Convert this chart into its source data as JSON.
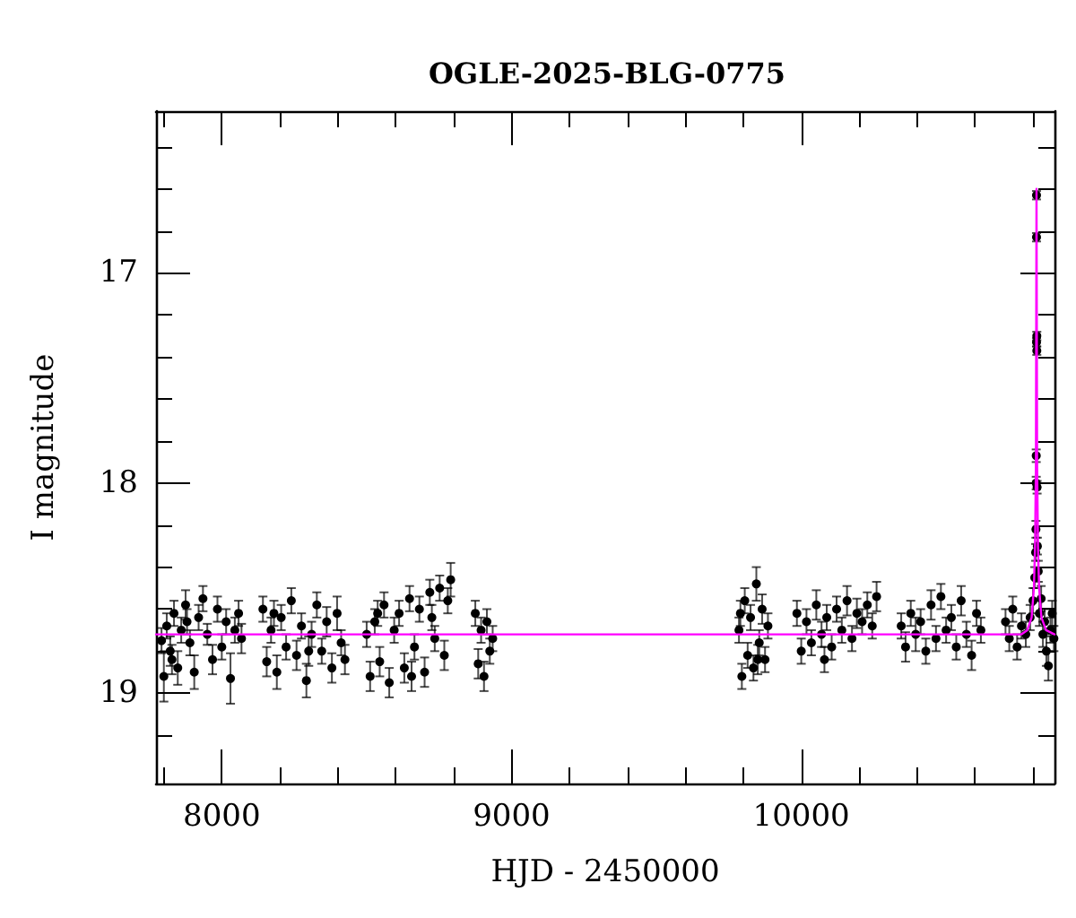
{
  "chart_data": {
    "type": "scatter",
    "title": "OGLE-2025-BLG-0775",
    "xlabel": "HJD - 2450000",
    "ylabel": "I magnitude",
    "xlim": [
      7773,
      10874
    ],
    "ylim": [
      19.43,
      16.23
    ],
    "xticks": [
      {
        "value": 7800,
        "label": null
      },
      8000,
      {
        "value": 8200,
        "label": null
      },
      {
        "value": 8400,
        "label": null
      },
      {
        "value": 8600,
        "label": null
      },
      {
        "value": 8800,
        "label": null
      },
      9000,
      {
        "value": 9200,
        "label": null
      },
      {
        "value": 9400,
        "label": null
      },
      {
        "value": 9600,
        "label": null
      },
      {
        "value": 9800,
        "label": null
      },
      10000,
      {
        "value": 10200,
        "label": null
      },
      {
        "value": 10400,
        "label": null
      },
      {
        "value": 10600,
        "label": null
      },
      {
        "value": 10800,
        "label": null
      }
    ],
    "yticks": [
      {
        "value": 16.4,
        "label": null
      },
      {
        "value": 16.6,
        "label": null
      },
      {
        "value": 16.8,
        "label": null
      },
      17,
      {
        "value": 17.2,
        "label": null
      },
      {
        "value": 17.4,
        "label": null
      },
      {
        "value": 17.6,
        "label": null
      },
      {
        "value": 17.8,
        "label": null
      },
      18,
      {
        "value": 18.2,
        "label": null
      },
      {
        "value": 18.4,
        "label": null
      },
      {
        "value": 18.6,
        "label": null
      },
      {
        "value": 18.8,
        "label": null
      },
      19,
      {
        "value": 19.2,
        "label": null
      }
    ],
    "marker": "circle",
    "series": [
      {
        "color": "#000000",
        "x": [
          7792,
          7800,
          7810,
          7822,
          7835,
          7848,
          7860,
          7875,
          7890,
          7905,
          7920,
          7935,
          7950,
          7968,
          7985,
          8000,
          8015,
          8030,
          8045,
          8058,
          8068,
          8142,
          8155,
          8170,
          8190,
          8205,
          8222,
          8240,
          8258,
          8275,
          8292,
          8310,
          8328,
          8345,
          8362,
          8380,
          8398,
          8412,
          8425,
          8500,
          8512,
          8528,
          8545,
          8560,
          8578,
          8595,
          8612,
          8630,
          8648,
          8665,
          8682,
          8700,
          8718,
          8735,
          8752,
          8768,
          8780,
          8790,
          8875,
          8885,
          8895,
          8905,
          8915,
          8925,
          8935,
          9785,
          9795,
          9805,
          9815,
          9825,
          9835,
          9845,
          9855,
          9865,
          9875,
          9885,
          9985,
          10000,
          10018,
          10035,
          10052,
          10070,
          10088,
          10105,
          10122,
          10140,
          10158,
          10175,
          10192,
          10210,
          10228,
          10245,
          10260,
          10345,
          10360,
          10378,
          10395,
          10412,
          10430,
          10448,
          10465,
          10482,
          10500,
          10518,
          10535,
          10552,
          10570,
          10588,
          10605,
          10620,
          10705,
          10718,
          10730,
          10745,
          10760,
          10775,
          10790,
          10800,
          10806,
          10809,
          10810,
          10811,
          10811,
          10812,
          10812,
          10812,
          10813,
          10813,
          10814,
          10815,
          10818,
          10822,
          10828,
          10834,
          10840,
          10846,
          10853,
          10860,
          10866,
          10872,
          7828,
          7880,
          8180,
          8300,
          8538,
          8655,
          8725,
          9790,
          9850,
          10080
        ],
        "values": [
          18.75,
          18.92,
          18.68,
          18.8,
          18.62,
          18.88,
          18.7,
          18.58,
          18.76,
          18.9,
          18.64,
          18.55,
          18.72,
          18.84,
          18.6,
          18.78,
          18.66,
          18.93,
          18.7,
          18.62,
          18.74,
          18.6,
          18.85,
          18.7,
          18.9,
          18.64,
          18.78,
          18.56,
          18.82,
          18.68,
          18.94,
          18.72,
          18.58,
          18.8,
          18.66,
          18.88,
          18.62,
          18.76,
          18.84,
          18.72,
          18.92,
          18.66,
          18.85,
          18.58,
          18.95,
          18.7,
          18.62,
          18.88,
          18.55,
          18.78,
          18.6,
          18.9,
          18.52,
          18.74,
          18.5,
          18.82,
          18.56,
          18.46,
          18.62,
          18.86,
          18.7,
          18.92,
          18.66,
          18.8,
          18.74,
          18.7,
          18.92,
          18.56,
          18.82,
          18.64,
          18.88,
          18.48,
          18.76,
          18.6,
          18.84,
          18.68,
          18.62,
          18.8,
          18.66,
          18.76,
          18.58,
          18.72,
          18.64,
          18.78,
          18.6,
          18.7,
          18.56,
          18.74,
          18.62,
          18.66,
          18.58,
          18.68,
          18.54,
          18.68,
          18.78,
          18.62,
          18.72,
          18.66,
          18.8,
          18.58,
          18.74,
          18.54,
          18.7,
          18.64,
          18.78,
          18.56,
          18.72,
          18.82,
          18.62,
          18.7,
          18.66,
          18.74,
          18.6,
          18.78,
          18.68,
          18.72,
          18.64,
          18.56,
          18.45,
          18.33,
          18.22,
          17.87,
          18.0,
          17.33,
          16.83,
          16.63,
          17.3,
          17.37,
          18.02,
          18.3,
          18.42,
          18.62,
          18.55,
          18.72,
          18.66,
          18.8,
          18.87,
          18.7,
          18.62,
          18.74,
          18.84,
          18.66,
          18.62,
          18.8,
          18.62,
          18.92,
          18.64,
          18.62,
          18.84,
          18.84
        ],
        "errors": [
          0.06,
          0.12,
          0.06,
          0.07,
          0.06,
          0.08,
          0.06,
          0.07,
          0.06,
          0.08,
          0.06,
          0.06,
          0.05,
          0.07,
          0.06,
          0.06,
          0.06,
          0.12,
          0.06,
          0.06,
          0.07,
          0.06,
          0.07,
          0.06,
          0.08,
          0.06,
          0.06,
          0.06,
          0.07,
          0.06,
          0.08,
          0.06,
          0.06,
          0.06,
          0.07,
          0.07,
          0.08,
          0.06,
          0.07,
          0.06,
          0.07,
          0.06,
          0.07,
          0.06,
          0.07,
          0.06,
          0.06,
          0.07,
          0.06,
          0.06,
          0.06,
          0.07,
          0.06,
          0.06,
          0.06,
          0.07,
          0.06,
          0.08,
          0.06,
          0.07,
          0.06,
          0.07,
          0.06,
          0.06,
          0.06,
          0.06,
          0.06,
          0.06,
          0.06,
          0.06,
          0.06,
          0.08,
          0.06,
          0.07,
          0.06,
          0.06,
          0.06,
          0.06,
          0.06,
          0.06,
          0.07,
          0.06,
          0.06,
          0.06,
          0.06,
          0.06,
          0.07,
          0.06,
          0.07,
          0.06,
          0.06,
          0.06,
          0.07,
          0.06,
          0.07,
          0.06,
          0.08,
          0.06,
          0.06,
          0.07,
          0.06,
          0.06,
          0.06,
          0.06,
          0.06,
          0.07,
          0.06,
          0.07,
          0.06,
          0.06,
          0.06,
          0.06,
          0.06,
          0.06,
          0.06,
          0.06,
          0.06,
          0.06,
          0.05,
          0.04,
          0.04,
          0.03,
          0.03,
          0.02,
          0.02,
          0.02,
          0.02,
          0.02,
          0.03,
          0.04,
          0.05,
          0.06,
          0.06,
          0.06,
          0.06,
          0.07,
          0.07,
          0.06,
          0.06,
          0.06,
          0.07,
          0.06,
          0.06,
          0.07,
          0.06,
          0.07,
          0.06,
          0.06,
          0.07,
          0.06
        ]
      },
      {
        "type": "line",
        "color": "#ff00ff",
        "marker": "none",
        "x": [
          7773,
          10760,
          10780,
          10795,
          10803,
          10807,
          10810,
          10812,
          10814,
          10817,
          10821,
          10829,
          10845,
          10874
        ],
        "values": [
          18.72,
          18.72,
          18.7,
          18.64,
          18.5,
          18.3,
          17.9,
          16.6,
          17.9,
          18.3,
          18.5,
          18.64,
          18.7,
          18.72
        ]
      }
    ]
  }
}
